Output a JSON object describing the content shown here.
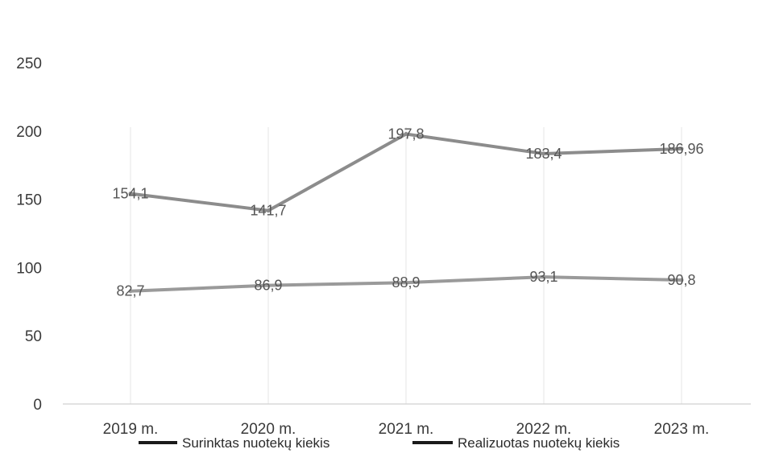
{
  "chart_data": {
    "type": "line",
    "categories": [
      "2019 m.",
      "2020 m.",
      "2021 m.",
      "2022 m.",
      "2023 m."
    ],
    "series": [
      {
        "name": "Surinktas nuotekų kiekis",
        "values": [
          154.1,
          141.7,
          197.8,
          183.4,
          186.96
        ],
        "labels": [
          "154,1",
          "141,7",
          "197,8",
          "183,4",
          "186,96"
        ],
        "color": "#8c8c8c"
      },
      {
        "name": "Realizuotas nuotekų kiekis",
        "values": [
          82.7,
          86.9,
          88.9,
          93.1,
          90.8
        ],
        "labels": [
          "82,7",
          "86,9",
          "88,9",
          "93,1",
          "90,8"
        ],
        "color": "#9a9a9a"
      }
    ],
    "yticks": [
      "0",
      "50",
      "100",
      "150",
      "200",
      "250"
    ],
    "ylim": [
      0,
      250
    ],
    "grid": "vertical",
    "legend": "bottom",
    "title": "",
    "xlabel": "",
    "ylabel": ""
  }
}
